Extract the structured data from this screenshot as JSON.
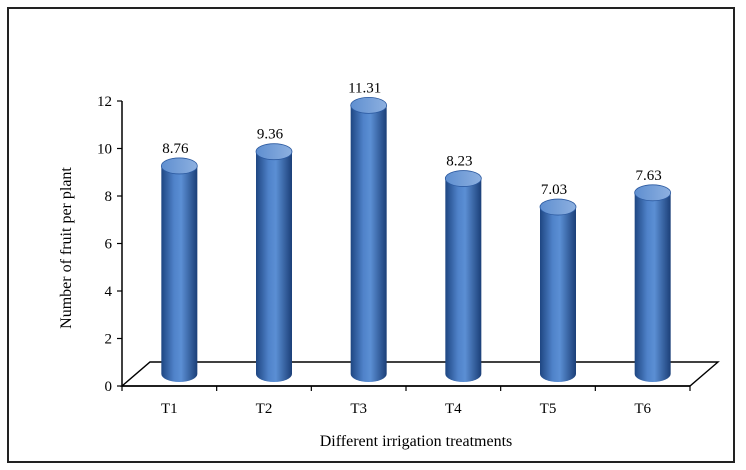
{
  "chart_data": {
    "type": "bar",
    "title": "",
    "xlabel": "Different irrigation treatments",
    "ylabel": "Number of fruit per plant",
    "categories": [
      "T1",
      "T2",
      "T3",
      "T4",
      "T5",
      "T6"
    ],
    "values": [
      8.76,
      9.36,
      11.31,
      8.23,
      7.03,
      7.63
    ],
    "data_labels": [
      "8.76",
      "9.36",
      "11.31",
      "8.23",
      "7.03",
      "7.63"
    ],
    "ylim": [
      0,
      12
    ],
    "yticks": [
      "0",
      "2",
      "4",
      "6",
      "8",
      "10",
      "12"
    ],
    "grid": false,
    "legend": "none",
    "style": "3d-cylinder"
  },
  "colors": {
    "bar": "#3e6fb6",
    "bar_dark": "#1f4785",
    "bar_light": "#8fb2e3",
    "axis": "#000000"
  }
}
